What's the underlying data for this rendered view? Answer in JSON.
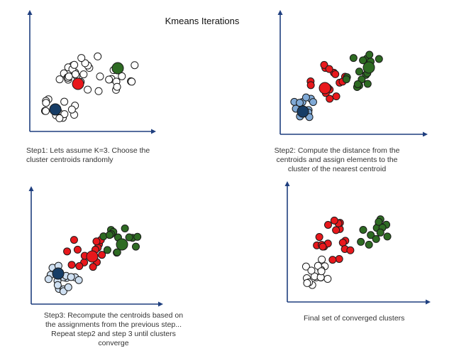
{
  "title": "Kmeans Iterations",
  "colors": {
    "axis": "#1f3f7f",
    "red": "#e8181c",
    "green": "#2e6b23",
    "dark_blue": "#173d66",
    "light_blue": "#7fa9d6",
    "pale_blue": "#cfe0f2",
    "outline": "#1a1a1a",
    "white": "#ffffff"
  },
  "panels": [
    {
      "id": "step1",
      "caption_lines": [
        "Step1: Lets assume K=3. Choose the",
        "cluster centroids randomly"
      ],
      "caption_align": "left"
    },
    {
      "id": "step2",
      "caption_lines": [
        "Step2: Compute the distance from the",
        "centroids and assign elements to the",
        "cluster of the nearest centroid"
      ],
      "caption_align": "center"
    },
    {
      "id": "step3",
      "caption_lines": [
        "Step3: Recompute the centroids based on",
        "the assignments from the previous step...",
        "Repeat step2 and step 3 until clusters",
        "converge"
      ],
      "caption_align": "center"
    },
    {
      "id": "final",
      "caption_lines": [
        "Final set of converged clusters"
      ],
      "caption_align": "left"
    }
  ]
}
